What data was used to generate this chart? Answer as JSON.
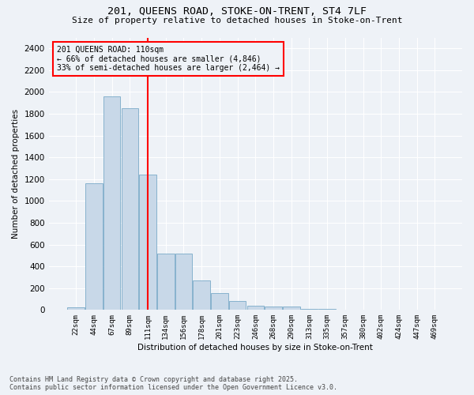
{
  "title_line1": "201, QUEENS ROAD, STOKE-ON-TRENT, ST4 7LF",
  "title_line2": "Size of property relative to detached houses in Stoke-on-Trent",
  "xlabel": "Distribution of detached houses by size in Stoke-on-Trent",
  "ylabel": "Number of detached properties",
  "categories": [
    "22sqm",
    "44sqm",
    "67sqm",
    "89sqm",
    "111sqm",
    "134sqm",
    "156sqm",
    "178sqm",
    "201sqm",
    "223sqm",
    "246sqm",
    "268sqm",
    "290sqm",
    "313sqm",
    "335sqm",
    "357sqm",
    "380sqm",
    "402sqm",
    "424sqm",
    "447sqm",
    "469sqm"
  ],
  "values": [
    22,
    1160,
    1960,
    1850,
    1240,
    515,
    515,
    270,
    155,
    85,
    40,
    30,
    28,
    10,
    8,
    5,
    4,
    3,
    2,
    2,
    1
  ],
  "bar_color": "#c8d8e8",
  "bar_edge_color": "#7aaac8",
  "vline_index": 4,
  "vline_color": "red",
  "annotation_title": "201 QUEENS ROAD: 110sqm",
  "annotation_line2": "← 66% of detached houses are smaller (4,846)",
  "annotation_line3": "33% of semi-detached houses are larger (2,464) →",
  "annotation_box_color": "red",
  "ylim": [
    0,
    2500
  ],
  "yticks": [
    0,
    200,
    400,
    600,
    800,
    1000,
    1200,
    1400,
    1600,
    1800,
    2000,
    2200,
    2400
  ],
  "background_color": "#eef2f7",
  "grid_color": "#ffffff",
  "footer_line1": "Contains HM Land Registry data © Crown copyright and database right 2025.",
  "footer_line2": "Contains public sector information licensed under the Open Government Licence v3.0."
}
